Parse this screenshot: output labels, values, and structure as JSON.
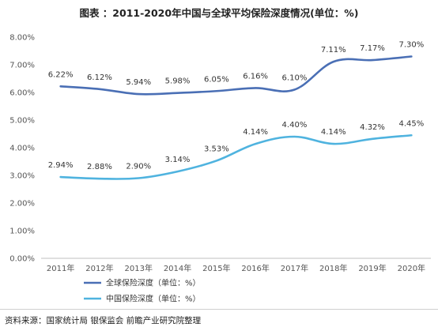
{
  "title": "图表 ：2011-2020年中国与全球平均保险深度情况(单位：%)",
  "source": "资料来源：国家统计局 银保监会 前瞻产业研究院整理",
  "chart_data": {
    "type": "line",
    "title": "图表 ：2011-2020年中国与全球平均保险深度情况(单位：%)",
    "categories": [
      "2011年",
      "2012年",
      "2013年",
      "2014年",
      "2015年",
      "2016年",
      "2017年",
      "2018年",
      "2019年",
      "2020年"
    ],
    "y_ticks": [
      "0.00%",
      "1.00%",
      "2.00%",
      "3.00%",
      "4.00%",
      "5.00%",
      "6.00%",
      "7.00%",
      "8.00%"
    ],
    "ylim": [
      0,
      8
    ],
    "grid": false,
    "legend_position": "bottom",
    "series": [
      {
        "name": "全球保险深度（单位：%）",
        "color": "#4a6fb5",
        "values": [
          6.22,
          6.12,
          5.94,
          5.98,
          6.05,
          6.16,
          6.1,
          7.11,
          7.17,
          7.3
        ],
        "labels": [
          "6.22%",
          "6.12%",
          "5.94%",
          "5.98%",
          "6.05%",
          "6.16%",
          "6.10%",
          "7.11%",
          "7.17%",
          "7.30%"
        ]
      },
      {
        "name": "中国保险深度（单位：%）",
        "color": "#4fb3df",
        "values": [
          2.94,
          2.88,
          2.9,
          3.14,
          3.53,
          4.14,
          4.4,
          4.14,
          4.32,
          4.45
        ],
        "labels": [
          "2.94%",
          "2.88%",
          "2.90%",
          "3.14%",
          "3.53%",
          "4.14%",
          "4.40%",
          "4.14%",
          "4.32%",
          "4.45%"
        ]
      }
    ]
  }
}
